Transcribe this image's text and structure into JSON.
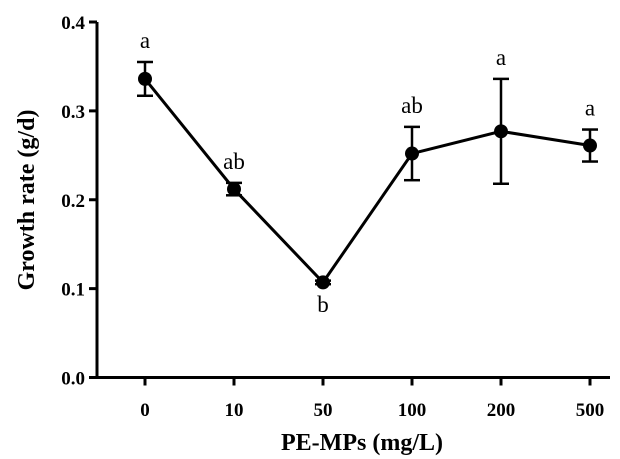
{
  "chart_data": {
    "type": "line",
    "xlabel": "PE-MPs (mg/L)",
    "ylabel": "Growth rate (g/d)",
    "categories": [
      "0",
      "10",
      "50",
      "100",
      "200",
      "500"
    ],
    "yticks": [
      "0.0",
      "0.1",
      "0.2",
      "0.3",
      "0.4"
    ],
    "ylim": [
      0,
      0.4
    ],
    "series": [
      {
        "values": [
          0.336,
          0.212,
          0.107,
          0.252,
          0.277,
          0.261
        ],
        "error": [
          0.019,
          0.007,
          0.002,
          0.03,
          0.059,
          0.018
        ],
        "annotations": [
          "a",
          "ab",
          "b",
          "ab",
          "a",
          "a"
        ],
        "annotation_positions": [
          "above",
          "above",
          "below",
          "above",
          "above",
          "above"
        ],
        "color": "#000000"
      }
    ],
    "grid": false,
    "legend": "none"
  }
}
